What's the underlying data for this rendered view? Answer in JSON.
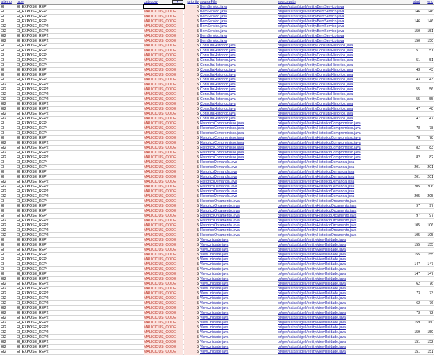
{
  "columns": [
    "attemp",
    "type",
    "category",
    "priority",
    "sourceFile",
    "sourcepath",
    "start",
    "end"
  ],
  "filter": {
    "dropdown_icon": "chevron-down-icon",
    "value": ""
  },
  "colors": {
    "link": "#1a1aa8",
    "category": "#c0392b",
    "highlight": "#fbe3df"
  },
  "rows": [
    [
      "EI",
      "EI_EXPOSE_REP",
      "MALICIOUS_CODE",
      "5",
      "BemServico.java",
      "br/gov/caixa/sigeli/entity/BemServico.java",
      "",
      ""
    ],
    [
      "EI",
      "EI_EXPOSE_REP",
      "MALICIOUS_CODE",
      "5",
      "BemServico.java",
      "br/gov/caixa/sigeli/entity/BemServico.java",
      "146",
      "146"
    ],
    [
      "EI",
      "EI_EXPOSE_REP",
      "MALICIOUS_CODE",
      "5",
      "BemServico.java",
      "br/gov/caixa/sigeli/entity/BemServico.java",
      "",
      ""
    ],
    [
      "EI",
      "EI_EXPOSE_REP",
      "MALICIOUS_CODE",
      "5",
      "BemServico.java",
      "br/gov/caixa/sigeli/entity/BemServico.java",
      "146",
      "146"
    ],
    [
      "EI2",
      "EI_EXPOSE_REP2",
      "MALICIOUS_CODE",
      "5",
      "BemServico.java",
      "br/gov/caixa/sigeli/entity/BemServico.java",
      "",
      ""
    ],
    [
      "EI2",
      "EI_EXPOSE_REP2",
      "MALICIOUS_CODE",
      "5",
      "BemServico.java",
      "br/gov/caixa/sigeli/entity/BemServico.java",
      "150",
      "151"
    ],
    [
      "EI2",
      "EI_EXPOSE_REP2",
      "MALICIOUS_CODE",
      "5",
      "BemServico.java",
      "br/gov/caixa/sigeli/entity/BemServico.java",
      "",
      ""
    ],
    [
      "EI2",
      "EI_EXPOSE_REP2",
      "MALICIOUS_CODE",
      "5",
      "BemServico.java",
      "br/gov/caixa/sigeli/entity/BemServico.java",
      "150",
      "150"
    ],
    [
      "EI",
      "EI_EXPOSE_REP",
      "MALICIOUS_CODE",
      "5",
      "ConsultaHistorico.java",
      "br/gov/caixa/sigeli/entity/ConsultaHistorico.java",
      "",
      ""
    ],
    [
      "EI",
      "EI_EXPOSE_REP",
      "MALICIOUS_CODE",
      "5",
      "ConsultaHistorico.java",
      "br/gov/caixa/sigeli/entity/ConsultaHistorico.java",
      "51",
      "51"
    ],
    [
      "EI",
      "EI_EXPOSE_REP",
      "MALICIOUS_CODE",
      "5",
      "ConsultaHistorico.java",
      "br/gov/caixa/sigeli/entity/ConsultaHistorico.java",
      "",
      ""
    ],
    [
      "EI",
      "EI_EXPOSE_REP",
      "MALICIOUS_CODE",
      "5",
      "ConsultaHistorico.java",
      "br/gov/caixa/sigeli/entity/ConsultaHistorico.java",
      "51",
      "51"
    ],
    [
      "EI",
      "EI_EXPOSE_REP",
      "MALICIOUS_CODE",
      "5",
      "ConsultaHistorico.java",
      "br/gov/caixa/sigeli/entity/ConsultaHistorico.java",
      "",
      ""
    ],
    [
      "EI",
      "EI_EXPOSE_REP",
      "MALICIOUS_CODE",
      "5",
      "ConsultaHistorico.java",
      "br/gov/caixa/sigeli/entity/ConsultaHistorico.java",
      "43",
      "43"
    ],
    [
      "EI",
      "EI_EXPOSE_REP",
      "MALICIOUS_CODE",
      "5",
      "ConsultaHistorico.java",
      "br/gov/caixa/sigeli/entity/ConsultaHistorico.java",
      "",
      ""
    ],
    [
      "EI",
      "EI_EXPOSE_REP",
      "MALICIOUS_CODE",
      "5",
      "ConsultaHistorico.java",
      "br/gov/caixa/sigeli/entity/ConsultaHistorico.java",
      "43",
      "43"
    ],
    [
      "EI2",
      "EI_EXPOSE_REP2",
      "MALICIOUS_CODE",
      "5",
      "ConsultaHistorico.java",
      "br/gov/caixa/sigeli/entity/ConsultaHistorico.java",
      "",
      ""
    ],
    [
      "EI2",
      "EI_EXPOSE_REP2",
      "MALICIOUS_CODE",
      "5",
      "ConsultaHistorico.java",
      "br/gov/caixa/sigeli/entity/ConsultaHistorico.java",
      "55",
      "56"
    ],
    [
      "EI2",
      "EI_EXPOSE_REP2",
      "MALICIOUS_CODE",
      "5",
      "ConsultaHistorico.java",
      "br/gov/caixa/sigeli/entity/ConsultaHistorico.java",
      "",
      ""
    ],
    [
      "EI2",
      "EI_EXPOSE_REP2",
      "MALICIOUS_CODE",
      "5",
      "ConsultaHistorico.java",
      "br/gov/caixa/sigeli/entity/ConsultaHistorico.java",
      "55",
      "55"
    ],
    [
      "EI2",
      "EI_EXPOSE_REP2",
      "MALICIOUS_CODE",
      "5",
      "ConsultaHistorico.java",
      "br/gov/caixa/sigeli/entity/ConsultaHistorico.java",
      "",
      ""
    ],
    [
      "EI2",
      "EI_EXPOSE_REP2",
      "MALICIOUS_CODE",
      "5",
      "ConsultaHistorico.java",
      "br/gov/caixa/sigeli/entity/ConsultaHistorico.java",
      "47",
      "48"
    ],
    [
      "EI2",
      "EI_EXPOSE_REP2",
      "MALICIOUS_CODE",
      "5",
      "ConsultaHistorico.java",
      "br/gov/caixa/sigeli/entity/ConsultaHistorico.java",
      "",
      ""
    ],
    [
      "EI2",
      "EI_EXPOSE_REP2",
      "MALICIOUS_CODE",
      "5",
      "ConsultaHistorico.java",
      "br/gov/caixa/sigeli/entity/ConsultaHistorico.java",
      "47",
      "47"
    ],
    [
      "EI",
      "EI_EXPOSE_REP",
      "MALICIOUS_CODE",
      "5",
      "HistoricoCompromisso.java",
      "br/gov/caixa/sigeli/entity/HistoricoCompromisso.java",
      "",
      ""
    ],
    [
      "EI",
      "EI_EXPOSE_REP",
      "MALICIOUS_CODE",
      "5",
      "HistoricoCompromisso.java",
      "br/gov/caixa/sigeli/entity/HistoricoCompromisso.java",
      "78",
      "78"
    ],
    [
      "EI",
      "EI_EXPOSE_REP",
      "MALICIOUS_CODE",
      "5",
      "HistoricoCompromisso.java",
      "br/gov/caixa/sigeli/entity/HistoricoCompromisso.java",
      "",
      ""
    ],
    [
      "EI",
      "EI_EXPOSE_REP",
      "MALICIOUS_CODE",
      "5",
      "HistoricoCompromisso.java",
      "br/gov/caixa/sigeli/entity/HistoricoCompromisso.java",
      "78",
      "78"
    ],
    [
      "EI2",
      "EI_EXPOSE_REP2",
      "MALICIOUS_CODE",
      "5",
      "HistoricoCompromisso.java",
      "br/gov/caixa/sigeli/entity/HistoricoCompromisso.java",
      "",
      ""
    ],
    [
      "EI2",
      "EI_EXPOSE_REP2",
      "MALICIOUS_CODE",
      "5",
      "HistoricoCompromisso.java",
      "br/gov/caixa/sigeli/entity/HistoricoCompromisso.java",
      "82",
      "83"
    ],
    [
      "EI2",
      "EI_EXPOSE_REP2",
      "MALICIOUS_CODE",
      "5",
      "HistoricoCompromisso.java",
      "br/gov/caixa/sigeli/entity/HistoricoCompromisso.java",
      "",
      ""
    ],
    [
      "EI2",
      "EI_EXPOSE_REP2",
      "MALICIOUS_CODE",
      "5",
      "HistoricoCompromisso.java",
      "br/gov/caixa/sigeli/entity/HistoricoCompromisso.java",
      "82",
      "82"
    ],
    [
      "EI",
      "EI_EXPOSE_REP",
      "MALICIOUS_CODE",
      "5",
      "HistoricoDemanda.java",
      "br/gov/caixa/sigeli/entity/HistoricoDemanda.java",
      "",
      ""
    ],
    [
      "EI",
      "EI_EXPOSE_REP",
      "MALICIOUS_CODE",
      "5",
      "HistoricoDemanda.java",
      "br/gov/caixa/sigeli/entity/HistoricoDemanda.java",
      "201",
      "201"
    ],
    [
      "EI",
      "EI_EXPOSE_REP",
      "MALICIOUS_CODE",
      "5",
      "HistoricoDemanda.java",
      "br/gov/caixa/sigeli/entity/HistoricoDemanda.java",
      "",
      ""
    ],
    [
      "EI",
      "EI_EXPOSE_REP",
      "MALICIOUS_CODE",
      "5",
      "HistoricoDemanda.java",
      "br/gov/caixa/sigeli/entity/HistoricoDemanda.java",
      "201",
      "201"
    ],
    [
      "EI2",
      "EI_EXPOSE_REP2",
      "MALICIOUS_CODE",
      "5",
      "HistoricoDemanda.java",
      "br/gov/caixa/sigeli/entity/HistoricoDemanda.java",
      "",
      ""
    ],
    [
      "EI2",
      "EI_EXPOSE_REP2",
      "MALICIOUS_CODE",
      "5",
      "HistoricoDemanda.java",
      "br/gov/caixa/sigeli/entity/HistoricoDemanda.java",
      "205",
      "206"
    ],
    [
      "EI2",
      "EI_EXPOSE_REP2",
      "MALICIOUS_CODE",
      "5",
      "HistoricoDemanda.java",
      "br/gov/caixa/sigeli/entity/HistoricoDemanda.java",
      "",
      ""
    ],
    [
      "EI2",
      "EI_EXPOSE_REP2",
      "MALICIOUS_CODE",
      "5",
      "HistoricoDemanda.java",
      "br/gov/caixa/sigeli/entity/HistoricoDemanda.java",
      "205",
      "205"
    ],
    [
      "EI",
      "EI_EXPOSE_REP",
      "MALICIOUS_CODE",
      "5",
      "HistoricoOrcamento.java",
      "br/gov/caixa/sigeli/entity/HistoricoOrcamento.java",
      "",
      ""
    ],
    [
      "EI",
      "EI_EXPOSE_REP",
      "MALICIOUS_CODE",
      "5",
      "HistoricoOrcamento.java",
      "br/gov/caixa/sigeli/entity/HistoricoOrcamento.java",
      "97",
      "97"
    ],
    [
      "EI",
      "EI_EXPOSE_REP",
      "MALICIOUS_CODE",
      "5",
      "HistoricoOrcamento.java",
      "br/gov/caixa/sigeli/entity/HistoricoOrcamento.java",
      "",
      ""
    ],
    [
      "EI",
      "EI_EXPOSE_REP",
      "MALICIOUS_CODE",
      "5",
      "HistoricoOrcamento.java",
      "br/gov/caixa/sigeli/entity/HistoricoOrcamento.java",
      "97",
      "97"
    ],
    [
      "EI2",
      "EI_EXPOSE_REP2",
      "MALICIOUS_CODE",
      "5",
      "HistoricoOrcamento.java",
      "br/gov/caixa/sigeli/entity/HistoricoOrcamento.java",
      "",
      ""
    ],
    [
      "EI2",
      "EI_EXPOSE_REP2",
      "MALICIOUS_CODE",
      "5",
      "HistoricoOrcamento.java",
      "br/gov/caixa/sigeli/entity/HistoricoOrcamento.java",
      "105",
      "106"
    ],
    [
      "EI2",
      "EI_EXPOSE_REP2",
      "MALICIOUS_CODE",
      "5",
      "HistoricoOrcamento.java",
      "br/gov/caixa/sigeli/entity/HistoricoOrcamento.java",
      "",
      ""
    ],
    [
      "EI2",
      "EI_EXPOSE_REP2",
      "MALICIOUS_CODE",
      "5",
      "HistoricoOrcamento.java",
      "br/gov/caixa/sigeli/entity/HistoricoOrcamento.java",
      "105",
      "105"
    ],
    [
      "EI",
      "EI_EXPOSE_REP",
      "MALICIOUS_CODE",
      "5",
      "ViewUnidade.java",
      "br/gov/caixa/sigeli/entity/ViewUnidade.java",
      "",
      ""
    ],
    [
      "EI",
      "EI_EXPOSE_REP",
      "MALICIOUS_CODE",
      "5",
      "ViewUnidade.java",
      "br/gov/caixa/sigeli/entity/ViewUnidade.java",
      "155",
      "155"
    ],
    [
      "EI",
      "EI_EXPOSE_REP",
      "MALICIOUS_CODE",
      "5",
      "ViewUnidade.java",
      "br/gov/caixa/sigeli/entity/ViewUnidade.java",
      "",
      ""
    ],
    [
      "EI",
      "EI_EXPOSE_REP",
      "MALICIOUS_CODE",
      "5",
      "ViewUnidade.java",
      "br/gov/caixa/sigeli/entity/ViewUnidade.java",
      "155",
      "155"
    ],
    [
      "EI",
      "EI_EXPOSE_REP",
      "MALICIOUS_CODE",
      "5",
      "ViewUnidade.java",
      "br/gov/caixa/sigeli/entity/ViewUnidade.java",
      "",
      ""
    ],
    [
      "EI",
      "EI_EXPOSE_REP",
      "MALICIOUS_CODE",
      "5",
      "ViewUnidade.java",
      "br/gov/caixa/sigeli/entity/ViewUnidade.java",
      "147",
      "147"
    ],
    [
      "EI",
      "EI_EXPOSE_REP",
      "MALICIOUS_CODE",
      "5",
      "ViewUnidade.java",
      "br/gov/caixa/sigeli/entity/ViewUnidade.java",
      "",
      ""
    ],
    [
      "EI",
      "EI_EXPOSE_REP",
      "MALICIOUS_CODE",
      "5",
      "ViewUnidade.java",
      "br/gov/caixa/sigeli/entity/ViewUnidade.java",
      "147",
      "147"
    ],
    [
      "EI2",
      "EI_EXPOSE_REP2",
      "MALICIOUS_CODE",
      "5",
      "ViewUnidade.java",
      "br/gov/caixa/sigeli/entity/ViewUnidade.java",
      "",
      ""
    ],
    [
      "EI2",
      "EI_EXPOSE_REP2",
      "MALICIOUS_CODE",
      "5",
      "ViewUnidade.java",
      "br/gov/caixa/sigeli/entity/ViewUnidade.java",
      "62",
      "76"
    ],
    [
      "EI2",
      "EI_EXPOSE_REP2",
      "MALICIOUS_CODE",
      "5",
      "ViewUnidade.java",
      "br/gov/caixa/sigeli/entity/ViewUnidade.java",
      "",
      ""
    ],
    [
      "EI2",
      "EI_EXPOSE_REP2",
      "MALICIOUS_CODE",
      "5",
      "ViewUnidade.java",
      "br/gov/caixa/sigeli/entity/ViewUnidade.java",
      "73",
      "73"
    ],
    [
      "EI2",
      "EI_EXPOSE_REP2",
      "MALICIOUS_CODE",
      "5",
      "ViewUnidade.java",
      "br/gov/caixa/sigeli/entity/ViewUnidade.java",
      "",
      ""
    ],
    [
      "EI2",
      "EI_EXPOSE_REP2",
      "MALICIOUS_CODE",
      "5",
      "ViewUnidade.java",
      "br/gov/caixa/sigeli/entity/ViewUnidade.java",
      "62",
      "76"
    ],
    [
      "EI2",
      "EI_EXPOSE_REP2",
      "MALICIOUS_CODE",
      "5",
      "ViewUnidade.java",
      "br/gov/caixa/sigeli/entity/ViewUnidade.java",
      "",
      ""
    ],
    [
      "EI2",
      "EI_EXPOSE_REP2",
      "MALICIOUS_CODE",
      "5",
      "ViewUnidade.java",
      "br/gov/caixa/sigeli/entity/ViewUnidade.java",
      "73",
      "72"
    ],
    [
      "EI2",
      "EI_EXPOSE_REP2",
      "MALICIOUS_CODE",
      "5",
      "ViewUnidade.java",
      "br/gov/caixa/sigeli/entity/ViewUnidade.java",
      "",
      ""
    ],
    [
      "EI2",
      "EI_EXPOSE_REP2",
      "MALICIOUS_CODE",
      "5",
      "ViewUnidade.java",
      "br/gov/caixa/sigeli/entity/ViewUnidade.java",
      "159",
      "160"
    ],
    [
      "EI2",
      "EI_EXPOSE_REP2",
      "MALICIOUS_CODE",
      "5",
      "ViewUnidade.java",
      "br/gov/caixa/sigeli/entity/ViewUnidade.java",
      "",
      ""
    ],
    [
      "EI2",
      "EI_EXPOSE_REP2",
      "MALICIOUS_CODE",
      "5",
      "ViewUnidade.java",
      "br/gov/caixa/sigeli/entity/ViewUnidade.java",
      "159",
      "159"
    ],
    [
      "EI2",
      "EI_EXPOSE_REP2",
      "MALICIOUS_CODE",
      "5",
      "ViewUnidade.java",
      "br/gov/caixa/sigeli/entity/ViewUnidade.java",
      "",
      ""
    ],
    [
      "EI2",
      "EI_EXPOSE_REP2",
      "MALICIOUS_CODE",
      "5",
      "ViewUnidade.java",
      "br/gov/caixa/sigeli/entity/ViewUnidade.java",
      "151",
      "152"
    ],
    [
      "EI2",
      "EI_EXPOSE_REP2",
      "MALICIOUS_CODE",
      "5",
      "ViewUnidade.java",
      "br/gov/caixa/sigeli/entity/ViewUnidade.java",
      "",
      ""
    ],
    [
      "EI2",
      "EI_EXPOSE_REP2",
      "MALICIOUS_CODE",
      "5",
      "ViewUnidade.java",
      "br/gov/caixa/sigeli/entity/ViewUnidade.java",
      "151",
      "151"
    ]
  ]
}
